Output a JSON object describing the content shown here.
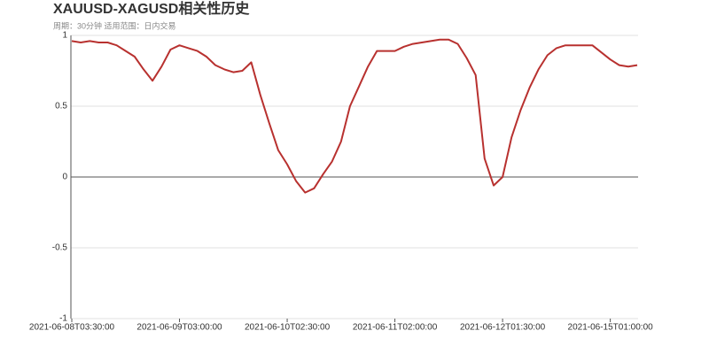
{
  "chart_data": {
    "type": "line",
    "title": "XAUUSD-XAGUSD相关性历史",
    "subtitle": "周期：30分钟 适用范围：日内交易",
    "categories": [
      "2021-06-08T03:30:00",
      null,
      null,
      null,
      null,
      null,
      null,
      null,
      null,
      null,
      null,
      null,
      "2021-06-09T03:00:00",
      null,
      null,
      null,
      null,
      null,
      null,
      null,
      null,
      null,
      null,
      null,
      "2021-06-10T02:30:00",
      null,
      null,
      null,
      null,
      null,
      null,
      null,
      null,
      null,
      null,
      null,
      "2021-06-11T02:00:00",
      null,
      null,
      null,
      null,
      null,
      null,
      null,
      null,
      null,
      null,
      null,
      "2021-06-12T01:30:00",
      null,
      null,
      null,
      null,
      null,
      null,
      null,
      null,
      null,
      null,
      null,
      "2021-06-15T01:00:00",
      null,
      null,
      null
    ],
    "series": [
      {
        "name": "XAUUSD-XAGUSD",
        "color": "#b8312f",
        "values": [
          0.96,
          0.95,
          0.96,
          0.95,
          0.95,
          0.93,
          0.89,
          0.85,
          0.76,
          0.68,
          0.78,
          0.9,
          0.93,
          0.91,
          0.89,
          0.85,
          0.79,
          0.76,
          0.74,
          0.75,
          0.81,
          0.58,
          0.38,
          0.19,
          0.09,
          -0.03,
          -0.11,
          -0.08,
          0.02,
          0.11,
          0.25,
          0.5,
          0.64,
          0.78,
          0.89,
          0.89,
          0.89,
          0.92,
          0.94,
          0.95,
          0.96,
          0.97,
          0.97,
          0.94,
          0.84,
          0.72,
          0.13,
          -0.06,
          0.0,
          0.28,
          0.47,
          0.63,
          0.76,
          0.86,
          0.91,
          0.93,
          0.93,
          0.93,
          0.93,
          0.88,
          0.83,
          0.79,
          0.78,
          0.79
        ]
      }
    ],
    "ylim": [
      -1,
      1
    ],
    "yticks": [
      -1,
      -0.5,
      0,
      0.5,
      1
    ],
    "grid": true
  }
}
